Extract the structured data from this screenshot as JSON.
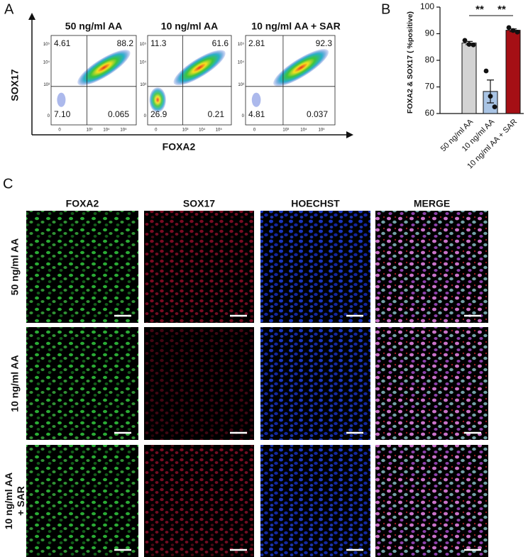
{
  "panel_a": {
    "label": "A",
    "y_axis_label": "SOX17",
    "x_axis_label": "FOXA2",
    "x_tick_labels": [
      "0",
      "10³",
      "10⁴",
      "10⁵"
    ],
    "y_tick_labels": [
      "10⁵",
      "10⁴",
      "10³",
      "0"
    ],
    "plots": [
      {
        "title": "50 ng/ml AA",
        "quadrants": {
          "upper_left": "4.61",
          "upper_right": "88.2",
          "lower_left": "7.10",
          "lower_right": "0.065"
        }
      },
      {
        "title": "10 ng/ml AA",
        "quadrants": {
          "upper_left": "11.3",
          "upper_right": "61.6",
          "lower_left": "26.9",
          "lower_right": "0.21"
        }
      },
      {
        "title": "10 ng/ml AA + SAR",
        "quadrants": {
          "upper_left": "2.81",
          "upper_right": "92.3",
          "lower_left": "4.81",
          "lower_right": "0.037"
        }
      }
    ]
  },
  "panel_b": {
    "label": "B",
    "chart_data": {
      "type": "bar",
      "y_label": "FOXA2 & SOX17 ( %positive)",
      "categories": [
        "50 ng/ml AA",
        "10 ng/ml AA",
        "10 ng/ml AA + SAR"
      ],
      "values": [
        86.5,
        68.3,
        91.3
      ],
      "errors": [
        0.6,
        4.3,
        0.5
      ],
      "points": [
        [
          87.5,
          86.0,
          85.8
        ],
        [
          76.0,
          66.5,
          62.5
        ],
        [
          92.3,
          91.2,
          90.6
        ]
      ],
      "colors": [
        "#d3d3d3",
        "#a9c4e4",
        "#a50f15"
      ],
      "ylim": [
        60,
        100
      ],
      "yticks": [
        60,
        70,
        80,
        90,
        100
      ],
      "significance": [
        "**",
        "**"
      ]
    }
  },
  "panel_c": {
    "label": "C",
    "channels": [
      {
        "name": "FOXA2",
        "color": "#22b14c"
      },
      {
        "name": "SOX17",
        "color": "#e0202a"
      },
      {
        "name": "HOECHST",
        "color": "#1f78c8"
      },
      {
        "name": "MERGE",
        "color": "#111111"
      }
    ],
    "rows": [
      {
        "label": [
          "50 ng/ml AA"
        ]
      },
      {
        "label": [
          "10 ng/ml AA"
        ]
      },
      {
        "label": [
          "10 ng/ml AA",
          "+ SAR"
        ]
      }
    ]
  }
}
